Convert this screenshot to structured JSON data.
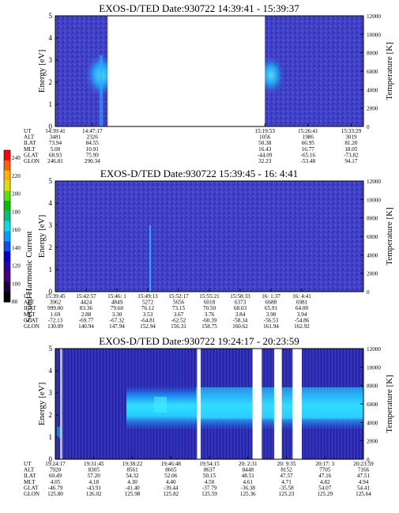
{
  "colors": {
    "background_plasma": "#4040c8",
    "heavy_blue": "#2828b0",
    "enhanced_cyan": "#30d8ff",
    "mid_blue": "#1c78e8",
    "gap": "#ffffff"
  },
  "colorbar": {
    "label": "Second Harmonic Current",
    "ticks": [
      "240",
      "220",
      "200",
      "180",
      "160",
      "140",
      "120",
      "100",
      "80"
    ],
    "colors": [
      "#ff0000",
      "#ff6000",
      "#ffb000",
      "#e0e000",
      "#60e000",
      "#00c000",
      "#00c080",
      "#00e0e0",
      "#00a0ff",
      "#0050ff",
      "#0000d0",
      "#3000a0",
      "#400080",
      "#200040",
      "#000000"
    ]
  },
  "chart_data": [
    {
      "type": "heatmap",
      "title": "EXOS-D/TED   Date:930722  14:39:41 - 15:39:37",
      "ylabel": "Energy [eV]",
      "y2label": "Temperature [K]",
      "ylim": [
        0,
        5
      ],
      "y2lim": [
        0,
        12000
      ],
      "yticks": [
        "0",
        "1",
        "2",
        "3",
        "4",
        "5"
      ],
      "y2ticks": [
        "0",
        "2000",
        "4000",
        "6000",
        "8000",
        "10000",
        "12000"
      ],
      "data_gaps": [
        [
          0.17,
          0.68
        ]
      ],
      "ephemeris": {
        "rows": [
          "UT",
          "ALT",
          "ILAT",
          "MLT",
          "GLAT",
          "GLON"
        ],
        "columns": [
          {
            "x": 0.0,
            "values": [
              "14:39:41",
              "3481",
              "73.94",
              "5.00",
              "68.93",
              "246.81"
            ]
          },
          {
            "x": 0.12,
            "values": [
              "14:47:17",
              "2326",
              "84.55",
              "10.91",
              "75.99",
              "290.34"
            ]
          },
          {
            "x": 0.68,
            "values": [
              "15:19:53",
              "1056",
              "50.38",
              "16.43",
              "-44.09",
              "32.23"
            ]
          },
          {
            "x": 0.82,
            "values": [
              "15:26:41",
              "1986",
              "66.95",
              "16.77",
              "-65.16",
              "-53.48"
            ]
          },
          {
            "x": 0.96,
            "values": [
              "15:33:29",
              "3019",
              "81.20",
              "18.05",
              "-73.82",
              "94.17"
            ]
          }
        ]
      }
    },
    {
      "type": "heatmap",
      "title": "EXOS-D/TED   Date:930722  15:39:45 - 16: 4:41",
      "ylabel": "Energy [eV]",
      "y2label": "Temperature [K]",
      "ylim": [
        0,
        5
      ],
      "y2lim": [
        0,
        12000
      ],
      "yticks": [
        "0",
        "1",
        "2",
        "3",
        "4",
        "5"
      ],
      "y2ticks": [
        "0",
        "2000",
        "4000",
        "6000",
        "8000",
        "10000",
        "12000"
      ],
      "data_gaps": [],
      "ephemeris": {
        "rows": [
          "UT",
          "ALT",
          "ILAT",
          "MLT",
          "GLAT",
          "GLON"
        ],
        "columns": [
          {
            "x": 0.0,
            "values": [
              "15:39:45",
              "3962",
              "999.00",
              "1.69",
              "-72.13",
              "130.09"
            ]
          },
          {
            "x": 0.1,
            "values": [
              "15:42:57",
              "4424",
              "83.36",
              "2.88",
              "-69.77",
              "140.94"
            ]
          },
          {
            "x": 0.2,
            "values": [
              "15:46: 1",
              "4849",
              "79.60",
              "3.30",
              "-67.32",
              "147.94"
            ]
          },
          {
            "x": 0.3,
            "values": [
              "15:49:13",
              "5272",
              "76.12",
              "3.53",
              "-64.81",
              "152.94"
            ]
          },
          {
            "x": 0.4,
            "values": [
              "15:52:17",
              "5656",
              "73.15",
              "3.67",
              "-62.52",
              "156.31"
            ]
          },
          {
            "x": 0.5,
            "values": [
              "15:55:21",
              "6018",
              "70.50",
              "3.76",
              "-60.39",
              "158.75"
            ]
          },
          {
            "x": 0.6,
            "values": [
              "15:58:33",
              "6373",
              "68.03",
              "3.84",
              "-58.34",
              "160.62"
            ]
          },
          {
            "x": 0.7,
            "values": [
              "16: 1:37",
              "6688",
              "65.91",
              "3.90",
              "-56.53",
              "161.94"
            ]
          },
          {
            "x": 0.8,
            "values": [
              "16: 4:41",
              "6981",
              "64.00",
              "3.94",
              "-54.86",
              "162.92"
            ]
          }
        ]
      }
    },
    {
      "type": "heatmap",
      "title": "EXOS-D/TED   Date:930722  19:24:17 - 20:23:59",
      "ylabel": "Energy [eV]",
      "y2label": "Temperature [K]",
      "ylim": [
        0,
        5
      ],
      "y2lim": [
        0,
        12000
      ],
      "yticks": [
        "0",
        "1",
        "2",
        "3",
        "4",
        "5"
      ],
      "y2ticks": [
        "0",
        "2000",
        "4000",
        "6000",
        "8000",
        "10000",
        "12000"
      ],
      "data_gaps": [
        [
          0.46,
          0.472
        ],
        [
          0.64,
          0.67
        ],
        [
          0.71,
          0.735
        ],
        [
          0.77,
          0.8
        ]
      ],
      "ephemeris": {
        "rows": [
          "UT",
          "ALT",
          "ILAT",
          "MLT",
          "GLAT",
          "GLON"
        ],
        "columns": [
          {
            "x": 0.0,
            "values": [
              "19:24:17",
              "7920",
              "60.49",
              "4.05",
              "-46.79",
              "125.80"
            ]
          },
          {
            "x": 0.125,
            "values": [
              "19:31:45",
              "8305",
              "57.20",
              "4.18",
              "-43.91",
              "126.02"
            ]
          },
          {
            "x": 0.25,
            "values": [
              "19:38:22",
              "8561",
              "54.32",
              "4.30",
              "-41.40",
              "125.98"
            ]
          },
          {
            "x": 0.375,
            "values": [
              "19:46:48",
              "8665",
              "52.06",
              "4.40",
              "-39.44",
              "125.82"
            ]
          },
          {
            "x": 0.5,
            "values": [
              "19:54:15",
              "8637",
              "50.15",
              "4.50",
              "-37.79",
              "125.59"
            ]
          },
          {
            "x": 0.625,
            "values": [
              "20: 2:31",
              "8448",
              "48.51",
              "4.61",
              "-36.38",
              "125.36"
            ]
          },
          {
            "x": 0.75,
            "values": [
              "20: 9:35",
              "8152",
              "47.57",
              "4.71",
              "-35.58",
              "125.23"
            ]
          },
          {
            "x": 0.875,
            "values": [
              "20:17: 3",
              "7705",
              "47.16",
              "4.82",
              "54.07",
              "125.29"
            ]
          },
          {
            "x": 1.0,
            "values": [
              "20:23:59",
              "7166",
              "47.51",
              "4.94",
              "54.41",
              "125.64"
            ]
          }
        ]
      }
    }
  ]
}
